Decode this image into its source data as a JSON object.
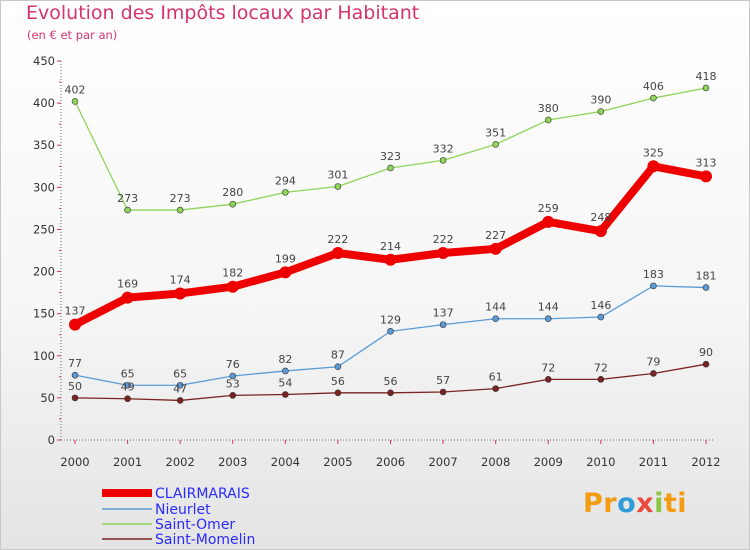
{
  "title": "Evolution des Impôts locaux par Habitant",
  "subtitle": "(en € et par an)",
  "logo": {
    "parts": [
      "Pr",
      "o",
      "x",
      "i",
      "ti"
    ],
    "colors": [
      "#f39c12",
      "#2f9bd8",
      "#e74c3c",
      "#8cc63f",
      "#f39c12"
    ]
  },
  "chart_data": {
    "type": "line",
    "x": [
      "2000",
      "2001",
      "2002",
      "2003",
      "2004",
      "2005",
      "2006",
      "2007",
      "2008",
      "2009",
      "2010",
      "2011",
      "2012"
    ],
    "ylim": [
      0,
      450
    ],
    "yticks": [
      0,
      50,
      100,
      150,
      200,
      250,
      300,
      350,
      400,
      450
    ],
    "grid": false,
    "legend_position": "bottom-left",
    "series": [
      {
        "name": "CLAIRMARAIS",
        "color": "#ee0000",
        "values": [
          137,
          169,
          174,
          182,
          199,
          222,
          214,
          222,
          227,
          259,
          248,
          325,
          313
        ]
      },
      {
        "name": "Nieurlet",
        "color": "#5b9bd5",
        "values": [
          77,
          65,
          65,
          76,
          82,
          87,
          129,
          137,
          144,
          144,
          146,
          183,
          181
        ]
      },
      {
        "name": "Saint-Omer",
        "color": "#8ed45a",
        "values": [
          402,
          273,
          273,
          280,
          294,
          301,
          323,
          332,
          351,
          380,
          390,
          406,
          418
        ]
      },
      {
        "name": "Saint-Momelin",
        "color": "#7b2323",
        "values": [
          50,
          49,
          47,
          53,
          54,
          56,
          56,
          57,
          61,
          72,
          72,
          79,
          90
        ]
      }
    ]
  }
}
